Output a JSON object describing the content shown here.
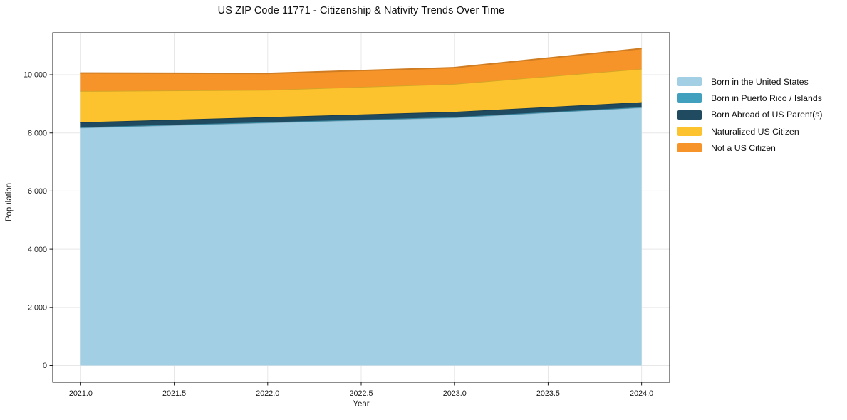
{
  "figure": {
    "title": "US ZIP Code 11771 - Citizenship & Nativity Trends Over Time"
  },
  "chart_data": {
    "type": "area",
    "stacked": true,
    "title": "US ZIP Code 11771 - Citizenship & Nativity Trends Over Time",
    "xlabel": "Year",
    "ylabel": "Population",
    "x": [
      2021,
      2022,
      2023,
      2024
    ],
    "series": [
      {
        "name": "Born in the United States",
        "color": "#a3cfe5",
        "values": [
          8180,
          8355,
          8530,
          8875
        ]
      },
      {
        "name": "Born in Puerto Rico / Islands",
        "color": "#41a0bd",
        "values": [
          15,
          15,
          15,
          15
        ]
      },
      {
        "name": "Born Abroad of US Parent(s)",
        "color": "#1f4a5f",
        "values": [
          170,
          175,
          180,
          165
        ]
      },
      {
        "name": "Naturalized US Citizen",
        "color": "#fdc32e",
        "values": [
          1075,
          935,
          960,
          1150
        ]
      },
      {
        "name": "Not a US Citizen",
        "color": "#f79429",
        "values": [
          620,
          565,
          560,
          695
        ]
      }
    ],
    "totals_by_year": [
      10060,
      10045,
      10245,
      10900
    ],
    "xticks": [
      2021,
      2021.5,
      2022,
      2022.5,
      2023,
      2023.5,
      2024
    ],
    "xtick_labels": [
      "2021.0",
      "2021.5",
      "2022.0",
      "2022.5",
      "2023.0",
      "2023.5",
      "2024.0"
    ],
    "yticks": [
      0,
      2000,
      4000,
      6000,
      8000,
      10000
    ],
    "ytick_labels": [
      "0",
      "2,000",
      "4,000",
      "6,000",
      "8,000",
      "10,000"
    ],
    "xlim": [
      2020.85,
      2024.15
    ],
    "ylim": [
      -575,
      11445
    ],
    "grid": true,
    "legend_position": "outside-right"
  },
  "style": {
    "background": "#ffffff",
    "grid_color": "#e7e7e7",
    "spine_color": "#1a1a1a",
    "text_color": "#191919",
    "edge_darken": 0.84
  }
}
